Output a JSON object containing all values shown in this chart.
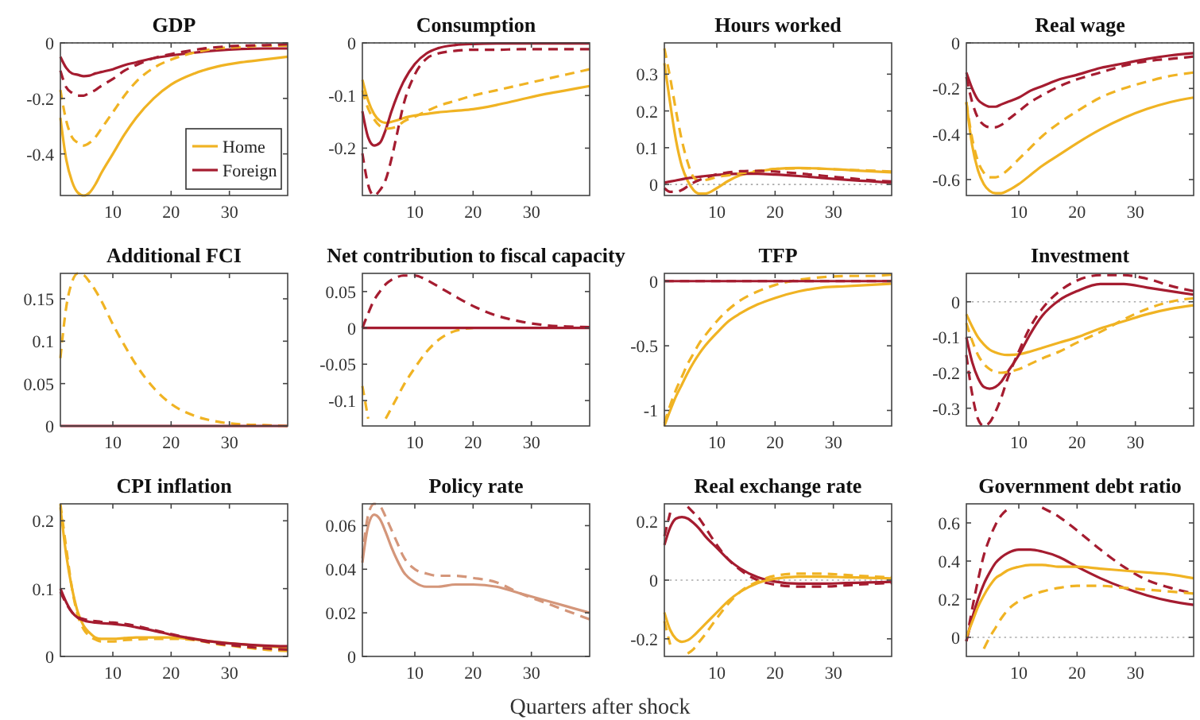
{
  "chart_data": [
    {
      "type": "line",
      "title": "GDP",
      "x": [
        1,
        2,
        3,
        4,
        5,
        6,
        7,
        8,
        10,
        12,
        14,
        17,
        20,
        24,
        28,
        32,
        36,
        40
      ],
      "xlim": [
        1,
        40
      ],
      "xticks": [
        10,
        20,
        30
      ],
      "ylim": [
        -0.55,
        0
      ],
      "yticks": [
        -0.4,
        -0.2,
        0
      ],
      "legend": "bottom right",
      "ref_lines": [
        {
          "axis": "y",
          "value": 0,
          "color": "#aaaaaa",
          "line_style": "dotted"
        }
      ],
      "series": [
        {
          "name": "Home",
          "color": "#f0b323",
          "values": [
            -0.27,
            -0.42,
            -0.5,
            -0.54,
            -0.55,
            -0.54,
            -0.51,
            -0.47,
            -0.4,
            -0.33,
            -0.27,
            -0.2,
            -0.15,
            -0.11,
            -0.085,
            -0.07,
            -0.06,
            -0.05
          ]
        },
        {
          "name": "Foreign",
          "color": "#a51c30",
          "values": [
            -0.05,
            -0.09,
            -0.11,
            -0.115,
            -0.12,
            -0.118,
            -0.11,
            -0.105,
            -0.095,
            -0.08,
            -0.07,
            -0.055,
            -0.045,
            -0.035,
            -0.027,
            -0.022,
            -0.02,
            -0.02
          ]
        },
        {
          "color": "#f0b323",
          "line_style": "dashed",
          "values": [
            -0.17,
            -0.28,
            -0.34,
            -0.36,
            -0.37,
            -0.36,
            -0.34,
            -0.31,
            -0.25,
            -0.19,
            -0.14,
            -0.09,
            -0.06,
            -0.035,
            -0.02,
            -0.015,
            -0.01,
            -0.01
          ]
        },
        {
          "color": "#a51c30",
          "line_style": "dashed",
          "values": [
            -0.1,
            -0.16,
            -0.18,
            -0.19,
            -0.19,
            -0.18,
            -0.17,
            -0.155,
            -0.13,
            -0.1,
            -0.08,
            -0.055,
            -0.04,
            -0.025,
            -0.015,
            -0.01,
            -0.008,
            -0.005
          ]
        }
      ]
    },
    {
      "type": "line",
      "title": "Consumption",
      "x": [
        1,
        2,
        3,
        4,
        5,
        6,
        7,
        8,
        10,
        12,
        14,
        17,
        20,
        24,
        28,
        32,
        36,
        40
      ],
      "xlim": [
        1,
        40
      ],
      "xticks": [
        10,
        20,
        30
      ],
      "ylim": [
        -0.29,
        0
      ],
      "yticks": [
        -0.2,
        -0.1,
        0
      ],
      "ref_lines": [
        {
          "axis": "y",
          "value": 0,
          "color": "#aaaaaa",
          "line_style": "dotted"
        }
      ],
      "series": [
        {
          "color": "#f0b323",
          "values": [
            -0.07,
            -0.11,
            -0.135,
            -0.148,
            -0.152,
            -0.15,
            -0.147,
            -0.143,
            -0.138,
            -0.135,
            -0.132,
            -0.129,
            -0.126,
            -0.118,
            -0.108,
            -0.098,
            -0.09,
            -0.082
          ]
        },
        {
          "color": "#a51c30",
          "values": [
            -0.13,
            -0.18,
            -0.195,
            -0.19,
            -0.165,
            -0.13,
            -0.1,
            -0.075,
            -0.04,
            -0.02,
            -0.01,
            -0.004,
            -0.002,
            -0.001,
            -0.001,
            -0.001,
            -0.001,
            -0.001
          ]
        },
        {
          "color": "#f0b323",
          "line_style": "dashed",
          "values": [
            -0.09,
            -0.125,
            -0.145,
            -0.158,
            -0.163,
            -0.162,
            -0.158,
            -0.15,
            -0.14,
            -0.13,
            -0.12,
            -0.11,
            -0.1,
            -0.09,
            -0.08,
            -0.07,
            -0.06,
            -0.05
          ]
        },
        {
          "color": "#a51c30",
          "line_style": "dashed",
          "values": [
            -0.21,
            -0.27,
            -0.29,
            -0.28,
            -0.26,
            -0.22,
            -0.17,
            -0.12,
            -0.06,
            -0.03,
            -0.02,
            -0.015,
            -0.013,
            -0.013,
            -0.012,
            -0.012,
            -0.012,
            -0.012
          ]
        }
      ]
    },
    {
      "type": "line",
      "title": "Hours worked",
      "x": [
        1,
        2,
        3,
        4,
        5,
        6,
        7,
        8,
        10,
        12,
        14,
        17,
        20,
        24,
        28,
        32,
        36,
        40
      ],
      "xlim": [
        1,
        40
      ],
      "xticks": [
        10,
        20,
        30
      ],
      "ylim": [
        -0.03,
        0.385
      ],
      "yticks": [
        0,
        0.1,
        0.2,
        0.3
      ],
      "ref_lines": [
        {
          "axis": "y",
          "value": 0,
          "color": "#aaaaaa",
          "line_style": "dotted"
        }
      ],
      "series": [
        {
          "color": "#f0b323",
          "values": [
            0.33,
            0.22,
            0.12,
            0.05,
            0.01,
            -0.015,
            -0.025,
            -0.025,
            -0.01,
            0.01,
            0.025,
            0.035,
            0.042,
            0.045,
            0.043,
            0.04,
            0.036,
            0.033
          ]
        },
        {
          "color": "#a51c30",
          "values": [
            0.005,
            0.008,
            0.011,
            0.014,
            0.017,
            0.019,
            0.021,
            0.023,
            0.026,
            0.028,
            0.029,
            0.029,
            0.027,
            0.023,
            0.018,
            0.013,
            0.009,
            0.005
          ]
        },
        {
          "color": "#f0b323",
          "line_style": "dashed",
          "values": [
            0.37,
            0.29,
            0.2,
            0.12,
            0.06,
            0.02,
            0.01,
            0.012,
            0.02,
            0.025,
            0.03,
            0.037,
            0.042,
            0.044,
            0.043,
            0.04,
            0.038,
            0.035
          ]
        },
        {
          "color": "#a51c30",
          "line_style": "dashed",
          "values": [
            -0.01,
            -0.02,
            -0.02,
            -0.015,
            -0.005,
            0.005,
            0.012,
            0.018,
            0.028,
            0.033,
            0.036,
            0.037,
            0.035,
            0.03,
            0.024,
            0.018,
            0.012,
            0.008
          ]
        }
      ]
    },
    {
      "type": "line",
      "title": "Real wage",
      "x": [
        1,
        2,
        3,
        4,
        5,
        6,
        7,
        8,
        10,
        12,
        14,
        17,
        20,
        24,
        28,
        32,
        36,
        40
      ],
      "xlim": [
        1,
        40
      ],
      "xticks": [
        10,
        20,
        30
      ],
      "ylim": [
        -0.67,
        0
      ],
      "yticks": [
        -0.6,
        -0.4,
        -0.2,
        0
      ],
      "ref_lines": [
        {
          "axis": "y",
          "value": 0,
          "color": "#aaaaaa",
          "line_style": "dotted"
        }
      ],
      "series": [
        {
          "color": "#f0b323",
          "values": [
            -0.26,
            -0.45,
            -0.56,
            -0.62,
            -0.65,
            -0.66,
            -0.66,
            -0.65,
            -0.62,
            -0.58,
            -0.54,
            -0.49,
            -0.44,
            -0.38,
            -0.33,
            -0.29,
            -0.26,
            -0.24
          ]
        },
        {
          "color": "#a51c30",
          "values": [
            -0.13,
            -0.2,
            -0.25,
            -0.27,
            -0.28,
            -0.28,
            -0.27,
            -0.26,
            -0.24,
            -0.21,
            -0.19,
            -0.16,
            -0.14,
            -0.11,
            -0.09,
            -0.07,
            -0.055,
            -0.045
          ]
        },
        {
          "color": "#f0b323",
          "line_style": "dashed",
          "values": [
            -0.26,
            -0.42,
            -0.52,
            -0.57,
            -0.59,
            -0.59,
            -0.58,
            -0.56,
            -0.51,
            -0.46,
            -0.41,
            -0.35,
            -0.3,
            -0.24,
            -0.2,
            -0.17,
            -0.145,
            -0.13
          ]
        },
        {
          "color": "#a51c30",
          "line_style": "dashed",
          "values": [
            -0.15,
            -0.26,
            -0.33,
            -0.36,
            -0.37,
            -0.37,
            -0.36,
            -0.34,
            -0.3,
            -0.26,
            -0.23,
            -0.19,
            -0.16,
            -0.13,
            -0.1,
            -0.08,
            -0.07,
            -0.06
          ]
        }
      ]
    },
    {
      "type": "line",
      "title": "Additional FCI",
      "x": [
        1,
        2,
        3,
        4,
        5,
        6,
        7,
        8,
        10,
        12,
        14,
        17,
        20,
        24,
        28,
        32,
        36,
        40
      ],
      "xlim": [
        1,
        40
      ],
      "xticks": [
        10,
        20,
        30
      ],
      "ylim": [
        0,
        0.18
      ],
      "yticks": [
        0,
        0.05,
        0.1,
        0.15
      ],
      "series": [
        {
          "color": "#f0b323",
          "line_style": "dashed",
          "values": [
            0.08,
            0.14,
            0.17,
            0.18,
            0.178,
            0.17,
            0.16,
            0.148,
            0.12,
            0.095,
            0.072,
            0.045,
            0.026,
            0.012,
            0.005,
            0.002,
            0.001,
            0
          ]
        },
        {
          "color": "#a51c30",
          "values": [
            0,
            0,
            0,
            0,
            0,
            0,
            0,
            0,
            0,
            0,
            0,
            0,
            0,
            0,
            0,
            0,
            0,
            0
          ]
        }
      ]
    },
    {
      "type": "line",
      "title": "Net contribution to fiscal capacity",
      "x": [
        1,
        2,
        3,
        4,
        5,
        6,
        7,
        8,
        10,
        12,
        14,
        17,
        20,
        24,
        28,
        32,
        36,
        40
      ],
      "xlim": [
        1,
        40
      ],
      "xticks": [
        10,
        20,
        30
      ],
      "ylim": [
        -0.135,
        0.075
      ],
      "yticks": [
        -0.1,
        -0.05,
        0,
        0.05
      ],
      "series": [
        {
          "color": "#f0b323",
          "line_style": "dashed",
          "values": [
            -0.08,
            -0.125,
            null,
            null,
            -0.125,
            -0.11,
            -0.095,
            -0.08,
            -0.055,
            -0.033,
            -0.017,
            -0.004,
            0,
            null,
            null,
            null,
            null,
            null
          ]
        },
        {
          "color": "#a51c30",
          "line_style": "dashed",
          "values": [
            0,
            0.02,
            0.038,
            0.05,
            0.06,
            0.066,
            0.07,
            0.072,
            0.072,
            0.066,
            0.057,
            0.043,
            0.03,
            0.017,
            0.009,
            0.004,
            0.002,
            0.001
          ]
        },
        {
          "color": "#a51c30",
          "values": [
            0,
            0,
            0,
            0,
            0,
            0,
            0,
            0,
            0,
            0,
            0,
            0,
            0,
            0,
            0,
            0,
            0,
            0
          ]
        }
      ]
    },
    {
      "type": "line",
      "title": "TFP",
      "x": [
        1,
        2,
        3,
        4,
        5,
        6,
        7,
        8,
        10,
        12,
        14,
        17,
        20,
        24,
        28,
        32,
        36,
        40
      ],
      "xlim": [
        1,
        40
      ],
      "xticks": [
        10,
        20,
        30
      ],
      "ylim": [
        -1.12,
        0.06
      ],
      "yticks": [
        -1,
        -0.5,
        0
      ],
      "series": [
        {
          "color": "#f0b323",
          "values": [
            -1.12,
            -1.0,
            -0.89,
            -0.8,
            -0.71,
            -0.63,
            -0.56,
            -0.5,
            -0.4,
            -0.31,
            -0.25,
            -0.18,
            -0.13,
            -0.08,
            -0.05,
            -0.04,
            -0.03,
            -0.02
          ]
        },
        {
          "color": "#f0b323",
          "line_style": "dashed",
          "values": [
            -1.1,
            -0.96,
            -0.84,
            -0.74,
            -0.64,
            -0.56,
            -0.48,
            -0.42,
            -0.31,
            -0.22,
            -0.15,
            -0.08,
            -0.03,
            0.01,
            0.03,
            0.04,
            0.04,
            0.05
          ]
        },
        {
          "color": "#a51c30",
          "line_style": "dashed",
          "values": [
            0,
            0,
            0,
            0,
            0,
            0,
            0,
            0,
            0,
            0,
            0,
            0,
            0,
            0,
            0,
            0,
            0,
            0
          ]
        },
        {
          "color": "#a51c30",
          "values": [
            0,
            0,
            0,
            0,
            0,
            0,
            0,
            0,
            0,
            0,
            0,
            0,
            0,
            0,
            0,
            0,
            0,
            0
          ]
        }
      ]
    },
    {
      "type": "line",
      "title": "Investment",
      "x": [
        1,
        2,
        3,
        4,
        5,
        6,
        7,
        8,
        10,
        12,
        14,
        17,
        20,
        24,
        28,
        32,
        36,
        40
      ],
      "xlim": [
        1,
        40
      ],
      "xticks": [
        10,
        20,
        30
      ],
      "ylim": [
        -0.35,
        0.08
      ],
      "yticks": [
        -0.3,
        -0.2,
        -0.1,
        0
      ],
      "ref_lines": [
        {
          "axis": "y",
          "value": 0,
          "color": "#aaaaaa",
          "line_style": "dotted"
        }
      ],
      "series": [
        {
          "color": "#f0b323",
          "values": [
            -0.035,
            -0.07,
            -0.1,
            -0.12,
            -0.135,
            -0.143,
            -0.148,
            -0.15,
            -0.148,
            -0.14,
            -0.13,
            -0.115,
            -0.1,
            -0.075,
            -0.055,
            -0.035,
            -0.02,
            -0.01
          ]
        },
        {
          "color": "#a51c30",
          "values": [
            -0.1,
            -0.17,
            -0.215,
            -0.24,
            -0.245,
            -0.24,
            -0.225,
            -0.2,
            -0.15,
            -0.09,
            -0.04,
            0.005,
            0.03,
            0.05,
            0.05,
            0.04,
            0.03,
            0.02
          ]
        },
        {
          "color": "#f0b323",
          "line_style": "dashed",
          "values": [
            -0.06,
            -0.11,
            -0.15,
            -0.175,
            -0.19,
            -0.198,
            -0.2,
            -0.198,
            -0.19,
            -0.175,
            -0.16,
            -0.14,
            -0.115,
            -0.085,
            -0.05,
            -0.02,
            0,
            0.01
          ]
        },
        {
          "color": "#a51c30",
          "line_style": "dashed",
          "values": [
            -0.15,
            -0.26,
            -0.33,
            -0.35,
            -0.34,
            -0.31,
            -0.27,
            -0.22,
            -0.14,
            -0.07,
            -0.02,
            0.03,
            0.06,
            0.075,
            0.075,
            0.065,
            0.045,
            0.03
          ]
        }
      ]
    },
    {
      "type": "line",
      "title": "CPI inflation",
      "x": [
        1,
        2,
        3,
        4,
        5,
        6,
        7,
        8,
        10,
        12,
        14,
        17,
        20,
        24,
        28,
        32,
        36,
        40
      ],
      "xlim": [
        1,
        40
      ],
      "xticks": [
        10,
        20,
        30
      ],
      "ylim": [
        0,
        0.225
      ],
      "yticks": [
        0,
        0.1,
        0.2
      ],
      "series": [
        {
          "color": "#f0b323",
          "values": [
            0.22,
            0.15,
            0.1,
            0.065,
            0.045,
            0.035,
            0.028,
            0.026,
            0.026,
            0.027,
            0.028,
            0.028,
            0.028,
            0.025,
            0.021,
            0.018,
            0.015,
            0.013
          ]
        },
        {
          "color": "#f0b323",
          "line_style": "dashed",
          "values": [
            0.225,
            0.16,
            0.1,
            0.06,
            0.04,
            0.03,
            0.025,
            0.022,
            0.022,
            0.024,
            0.025,
            0.026,
            0.026,
            0.024,
            0.018,
            0.014,
            0.01,
            0.008
          ]
        },
        {
          "color": "#a51c30",
          "values": [
            0.1,
            0.08,
            0.065,
            0.057,
            0.053,
            0.051,
            0.05,
            0.049,
            0.048,
            0.046,
            0.043,
            0.038,
            0.032,
            0.026,
            0.021,
            0.018,
            0.016,
            0.015
          ]
        },
        {
          "color": "#a51c30",
          "line_style": "dashed",
          "values": [
            0.095,
            0.078,
            0.065,
            0.058,
            0.055,
            0.053,
            0.052,
            0.051,
            0.05,
            0.048,
            0.045,
            0.039,
            0.033,
            0.025,
            0.019,
            0.015,
            0.012,
            0.01
          ]
        }
      ]
    },
    {
      "type": "line",
      "title": "Policy rate",
      "xlabel": "Quarters after shock",
      "x": [
        1,
        2,
        3,
        4,
        5,
        6,
        7,
        8,
        10,
        12,
        14,
        17,
        20,
        24,
        28,
        32,
        36,
        40
      ],
      "xlim": [
        1,
        40
      ],
      "xticks": [
        10,
        20,
        30
      ],
      "ylim": [
        0,
        0.07
      ],
      "yticks": [
        0,
        0.02,
        0.04,
        0.06
      ],
      "series": [
        {
          "color": "#d4967a",
          "values": [
            0.043,
            0.06,
            0.065,
            0.063,
            0.057,
            0.05,
            0.044,
            0.039,
            0.034,
            0.032,
            0.032,
            0.033,
            0.033,
            0.032,
            0.029,
            0.026,
            0.023,
            0.02
          ]
        },
        {
          "color": "#d4967a",
          "line_style": "dashed",
          "values": [
            0.045,
            0.065,
            0.07,
            0.069,
            0.064,
            0.058,
            0.052,
            0.046,
            0.04,
            0.038,
            0.037,
            0.037,
            0.036,
            0.034,
            0.029,
            0.025,
            0.021,
            0.017
          ]
        }
      ]
    },
    {
      "type": "line",
      "title": "Real exchange rate",
      "x": [
        1,
        2,
        3,
        4,
        5,
        6,
        7,
        8,
        10,
        12,
        14,
        17,
        20,
        24,
        28,
        32,
        36,
        40
      ],
      "xlim": [
        1,
        40
      ],
      "xticks": [
        10,
        20,
        30
      ],
      "ylim": [
        -0.26,
        0.26
      ],
      "yticks": [
        -0.2,
        0,
        0.2
      ],
      "ref_lines": [
        {
          "axis": "y",
          "value": 0,
          "color": "#aaaaaa",
          "line_style": "dotted"
        }
      ],
      "series": [
        {
          "color": "#a51c30",
          "values": [
            0.12,
            0.18,
            0.21,
            0.215,
            0.21,
            0.195,
            0.175,
            0.15,
            0.11,
            0.07,
            0.04,
            0.01,
            -0.005,
            -0.012,
            -0.012,
            -0.01,
            -0.008,
            -0.006
          ]
        },
        {
          "color": "#a51c30",
          "line_style": "dashed",
          "values": [
            0.15,
            0.23,
            null,
            null,
            0.25,
            0.23,
            0.21,
            0.18,
            0.12,
            0.07,
            0.035,
            0,
            -0.015,
            -0.022,
            -0.022,
            -0.018,
            -0.013,
            -0.01
          ]
        },
        {
          "color": "#f0b323",
          "values": [
            -0.11,
            -0.17,
            -0.2,
            -0.21,
            -0.205,
            -0.19,
            -0.17,
            -0.15,
            -0.11,
            -0.07,
            -0.04,
            -0.01,
            0.005,
            0.012,
            0.012,
            0.01,
            0.008,
            0.006
          ]
        },
        {
          "color": "#f0b323",
          "line_style": "dashed",
          "values": [
            -0.14,
            -0.22,
            null,
            null,
            -0.25,
            -0.235,
            -0.21,
            -0.185,
            -0.13,
            -0.08,
            -0.04,
            -0.005,
            0.015,
            0.022,
            0.022,
            0.018,
            0.013,
            0.01
          ]
        }
      ]
    },
    {
      "type": "line",
      "title": "Government debt ratio",
      "x": [
        1,
        2,
        3,
        4,
        5,
        6,
        7,
        8,
        10,
        12,
        14,
        17,
        20,
        24,
        28,
        32,
        36,
        40
      ],
      "xlim": [
        1,
        40
      ],
      "xticks": [
        10,
        20,
        30
      ],
      "ylim": [
        -0.1,
        0.7
      ],
      "yticks": [
        0,
        0.2,
        0.4,
        0.6
      ],
      "ref_lines": [
        {
          "axis": "y",
          "value": 0,
          "color": "#aaaaaa",
          "line_style": "dotted"
        }
      ],
      "series": [
        {
          "color": "#a51c30",
          "line_style": "dashed",
          "values": [
            -0.02,
            0.15,
            0.3,
            0.43,
            0.52,
            0.59,
            0.64,
            0.67,
            null,
            null,
            0.68,
            0.63,
            0.56,
            0.46,
            0.37,
            0.3,
            0.26,
            0.23
          ]
        },
        {
          "color": "#a51c30",
          "values": [
            -0.02,
            0.1,
            0.2,
            0.28,
            0.34,
            0.39,
            0.42,
            0.44,
            0.46,
            0.46,
            0.45,
            0.42,
            0.37,
            0.31,
            0.26,
            0.22,
            0.19,
            0.17
          ]
        },
        {
          "color": "#f0b323",
          "values": [
            0,
            0.08,
            0.16,
            0.22,
            0.27,
            0.31,
            0.33,
            0.35,
            0.37,
            0.38,
            0.38,
            0.37,
            0.37,
            0.36,
            0.35,
            0.34,
            0.33,
            0.31
          ]
        },
        {
          "color": "#f0b323",
          "line_style": "dashed",
          "values": [
            null,
            null,
            null,
            -0.06,
            0,
            0.05,
            0.1,
            0.14,
            0.19,
            0.22,
            0.24,
            0.26,
            0.27,
            0.27,
            0.26,
            0.25,
            0.24,
            0.23
          ]
        }
      ]
    }
  ]
}
